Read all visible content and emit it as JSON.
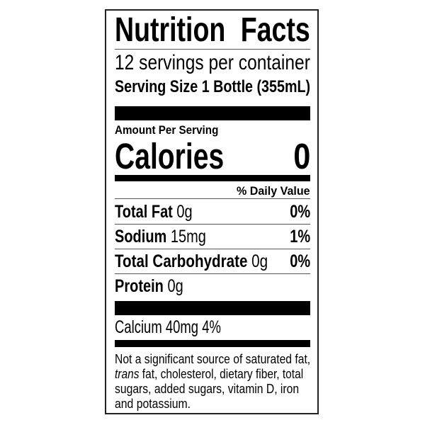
{
  "title": "Nutrition Facts",
  "servings_per_container": "12 servings per container",
  "serving_size": "Serving Size 1 Bottle (355mL)",
  "amount_per_serving": "Amount Per Serving",
  "calories": {
    "label": "Calories",
    "value": "0"
  },
  "daily_value_header": "% Daily Value",
  "nutrients": [
    {
      "name": "Total Fat",
      "amount": "0g",
      "dv": "0%"
    },
    {
      "name": "Sodium",
      "amount": "15mg",
      "dv": "1%"
    },
    {
      "name": "Total Carbohydrate",
      "amount": "0g",
      "dv": "0%"
    },
    {
      "name": "Protein",
      "amount": "0g",
      "dv": ""
    }
  ],
  "calcium": "Calcium 40mg 4%",
  "footnote": {
    "line1": "Not a significant source of saturated fat,",
    "line2_italic": "trans",
    "line2_rest": " fat, cholesterol, dietary fiber, total",
    "line3": "sugars, added sugars, vitamin D, iron",
    "line4": "and potassium."
  }
}
